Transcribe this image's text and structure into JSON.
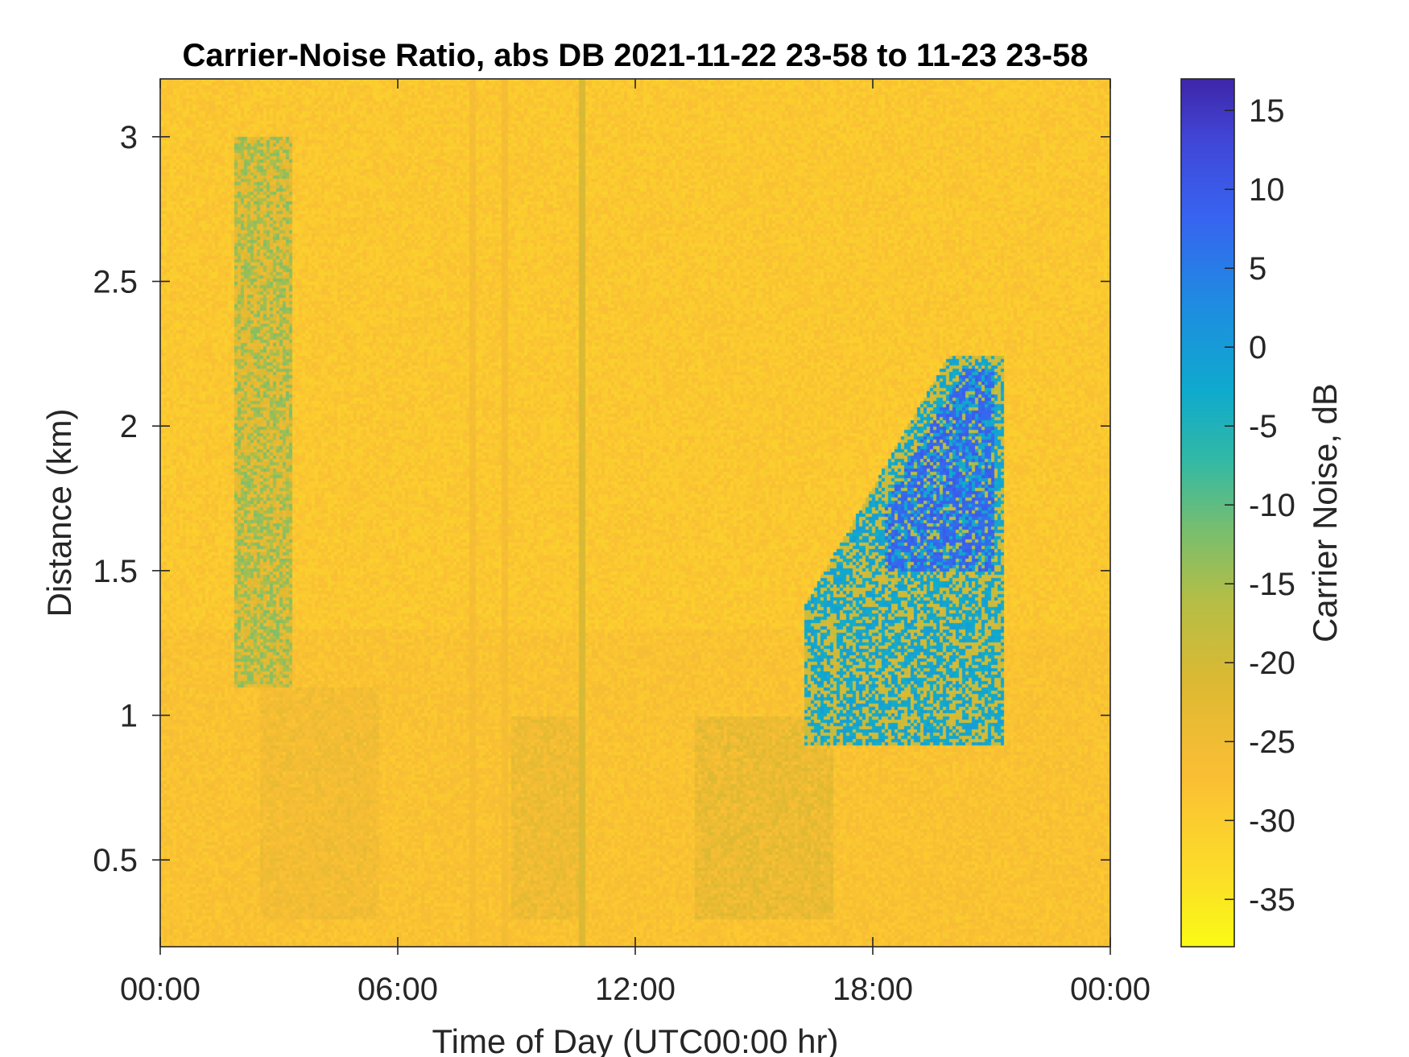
{
  "chart_data": {
    "type": "heatmap",
    "title": "Carrier-Noise Ratio, abs DB 2021-11-22 23-58 to 11-23 23-58",
    "xlabel": "Time of Day (UTC00:00 hr)",
    "ylabel": "Distance (km)",
    "x_ticks": [
      {
        "value": 0,
        "label": "00:00"
      },
      {
        "value": 6,
        "label": "06:00"
      },
      {
        "value": 12,
        "label": "12:00"
      },
      {
        "value": 18,
        "label": "18:00"
      },
      {
        "value": 24,
        "label": "00:00"
      }
    ],
    "y_ticks": [
      {
        "value": 0.5,
        "label": "0.5"
      },
      {
        "value": 1,
        "label": "1"
      },
      {
        "value": 1.5,
        "label": "1.5"
      },
      {
        "value": 2,
        "label": "2"
      },
      {
        "value": 2.5,
        "label": "2.5"
      },
      {
        "value": 3,
        "label": "3"
      }
    ],
    "xlim": [
      0,
      24
    ],
    "ylim": [
      0.2,
      3.2
    ],
    "colorbar": {
      "label": "Carrier Noise, dB",
      "range": [
        -38,
        17
      ],
      "ticks": [
        15,
        10,
        5,
        0,
        -5,
        -10,
        -15,
        -20,
        -25,
        -30,
        -35
      ],
      "tick_labels": [
        "15",
        "10",
        "5",
        "0",
        "-5",
        "-10",
        "-15",
        "-20",
        "-25",
        "-30",
        "-35"
      ],
      "colormap": "parula-reversed"
    },
    "background_level_db": -29,
    "features": [
      {
        "kind": "vertical-stripe",
        "time_hr": 10.65,
        "height_km": [
          0.2,
          3.2
        ],
        "db": -21
      },
      {
        "kind": "vertical-stripe",
        "time_hr": 7.85,
        "height_km": [
          0.2,
          3.2
        ],
        "db": -26
      },
      {
        "kind": "vertical-stripe",
        "time_hr": 8.7,
        "height_km": [
          0.2,
          3.2
        ],
        "db": -26
      },
      {
        "kind": "plume",
        "time_hr": [
          1.8,
          3.3
        ],
        "height_km": [
          1.1,
          3.0
        ],
        "db": -14
      },
      {
        "kind": "boundary-layer",
        "time_hr": [
          2.5,
          5.5
        ],
        "height_km": [
          0.3,
          1.1
        ],
        "db": -25
      },
      {
        "kind": "boundary-layer",
        "time_hr": [
          8.8,
          10.6
        ],
        "height_km": [
          0.3,
          1.0
        ],
        "db": -24
      },
      {
        "kind": "boundary-layer",
        "time_hr": [
          13.5,
          17.0
        ],
        "height_km": [
          0.3,
          1.0
        ],
        "db": -23
      },
      {
        "kind": "cloud",
        "time_hr": [
          16.2,
          21.3
        ],
        "height_km": [
          0.9,
          2.25
        ],
        "db": -2
      },
      {
        "kind": "cloud-core",
        "time_hr": [
          18.3,
          21.0
        ],
        "height_km": [
          1.5,
          2.2
        ],
        "db": 8
      }
    ]
  }
}
